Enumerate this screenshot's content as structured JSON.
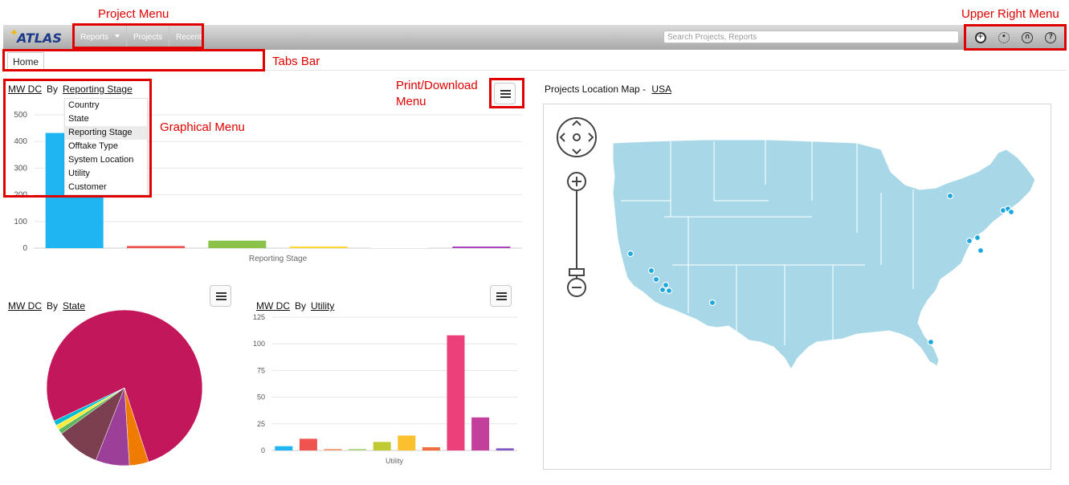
{
  "annotations": {
    "project_menu": "Project Menu",
    "upper_right_menu": "Upper Right Menu",
    "tabs_bar": "Tabs Bar",
    "print_download_menu_line1": "Print/Download",
    "print_download_menu_line2": "Menu",
    "graphical_menu": "Graphical Menu"
  },
  "header": {
    "logo_text": "ATLAS",
    "project_menu": [
      "Reports",
      "Projects",
      "Recent"
    ],
    "search_placeholder": "Search Projects, Reports",
    "upper_right_icons": [
      "add-icon",
      "gear-icon",
      "user-icon",
      "help-icon"
    ]
  },
  "tabs": [
    "Home"
  ],
  "chart1": {
    "metric": "MW DC",
    "by": "By",
    "dimension": "Reporting Stage",
    "dropdown_options": [
      "Country",
      "State",
      "Reporting Stage",
      "Offtake Type",
      "System Location",
      "Utility",
      "Customer"
    ],
    "dropdown_selected": "Reporting Stage"
  },
  "chart2": {
    "metric": "MW DC",
    "by": "By",
    "dimension": "State"
  },
  "chart3": {
    "metric": "MW DC",
    "by": "By",
    "dimension": "Utility"
  },
  "map": {
    "title_prefix": "Projects Location Map - ",
    "region": "USA"
  },
  "chart_data": [
    {
      "type": "bar",
      "xlabel": "Reporting Stage",
      "ylim": [
        0,
        500
      ],
      "yticks": [
        0,
        100,
        200,
        300,
        400,
        500
      ],
      "values": [
        432,
        8,
        28,
        3,
        0,
        2
      ],
      "colors": [
        "#1fb5f2",
        "#ef5350",
        "#8bc34a",
        "#fdd835",
        "#ffffff",
        "#ab47bc"
      ],
      "grid": true
    },
    {
      "type": "pie",
      "values": [
        77,
        4,
        7,
        9,
        1,
        1,
        1
      ],
      "colors": [
        "#c2185b",
        "#ef7c00",
        "#9c3f98",
        "#7b3f4f",
        "#5cb85c",
        "#ffeb3b",
        "#00bcd4"
      ]
    },
    {
      "type": "bar",
      "xlabel": "Utility",
      "ylim": [
        0,
        125
      ],
      "yticks": [
        0,
        25,
        50,
        75,
        100,
        125
      ],
      "values": [
        4,
        11,
        1,
        1,
        8,
        14,
        3,
        108,
        31,
        2
      ],
      "colors": [
        "#1fb5f2",
        "#ef5350",
        "#f4a582",
        "#b5d98f",
        "#c0ca33",
        "#fbc02d",
        "#ef6c3e",
        "#ec407a",
        "#c2409c",
        "#7e57c2"
      ],
      "grid": true
    }
  ]
}
